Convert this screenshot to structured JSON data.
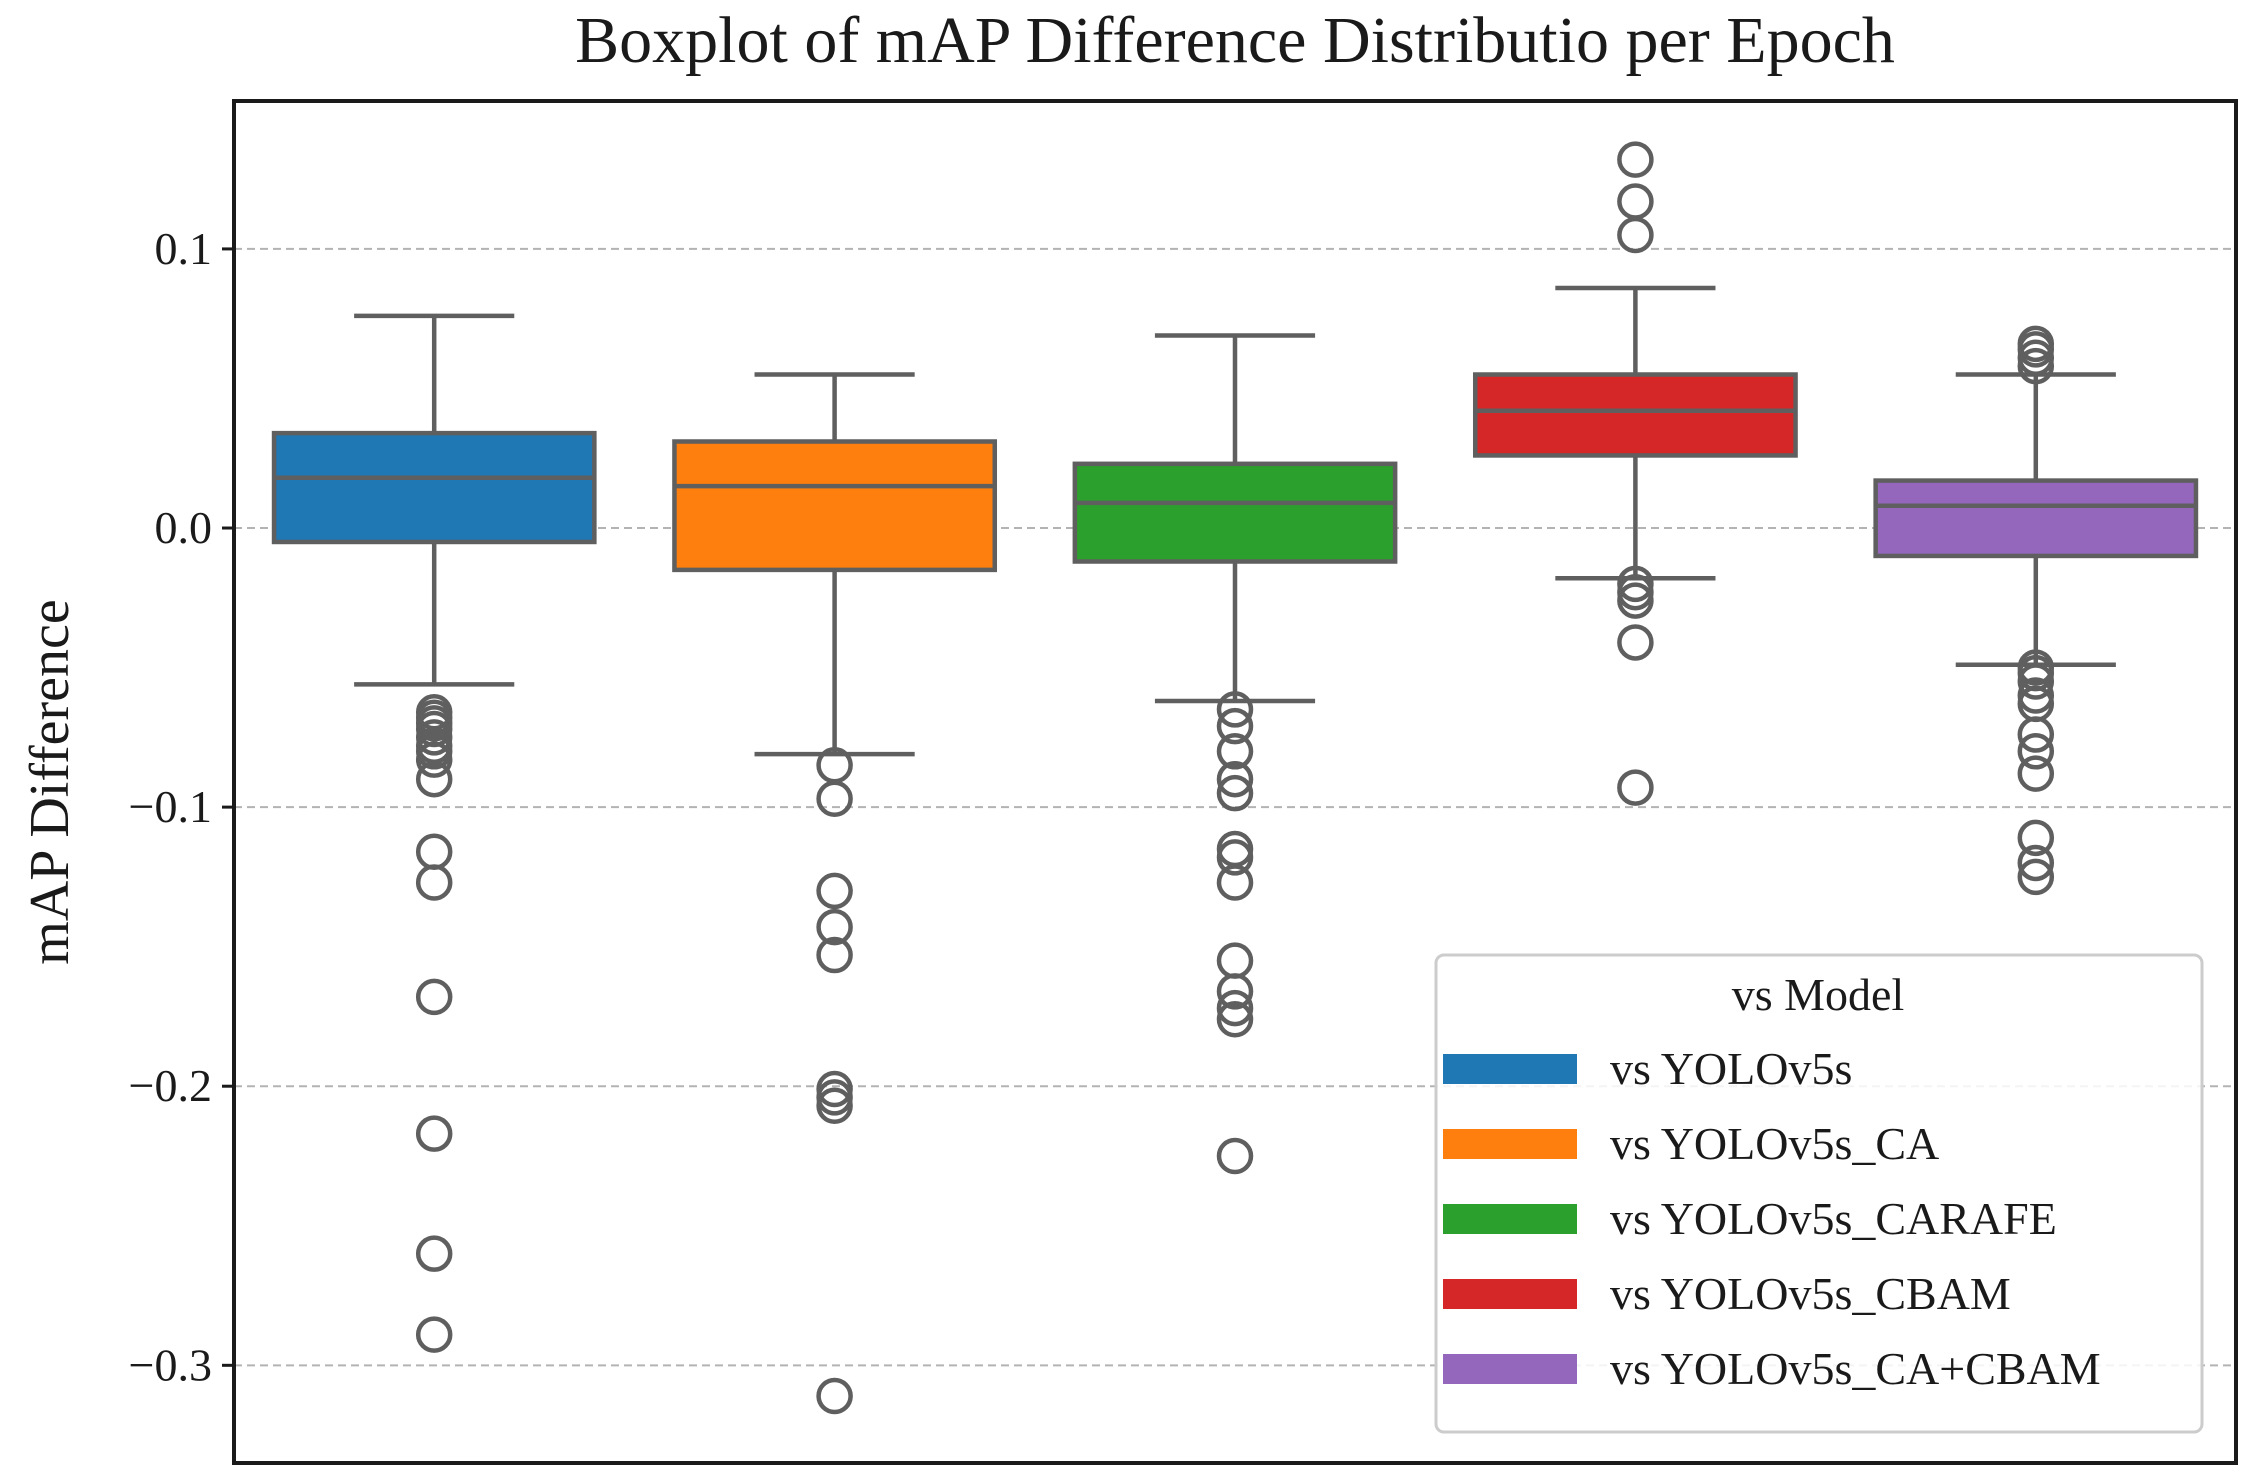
{
  "chart_data": {
    "type": "boxplot",
    "title": "Boxplot of mAP Difference Distributio per Epoch",
    "xlabel": "",
    "ylabel": "mAP Difference",
    "ylim": [
      -0.335,
      0.153
    ],
    "yticks": [
      0.1,
      0.0,
      -0.1,
      -0.2,
      -0.3
    ],
    "ytick_labels": [
      "0.1",
      "0.0",
      "−0.1",
      "−0.2",
      "−0.3"
    ],
    "grid": "horizontal dashed",
    "legend": {
      "title": "vs Model",
      "position": "lower-right",
      "entries": [
        "vs YOLOv5s",
        "vs YOLOv5s_CA",
        "vs YOLOv5s_CARAFE",
        "vs YOLOv5s_CBAM",
        "vs YOLOv5s_CA+CBAM"
      ]
    },
    "series": [
      {
        "name": "vs YOLOv5s",
        "color": "#1f77b4",
        "whisker_low": -0.056,
        "q1": -0.005,
        "median": 0.018,
        "q3": 0.034,
        "whisker_high": 0.076,
        "outliers": [
          -0.066,
          -0.068,
          -0.07,
          -0.072,
          -0.075,
          -0.078,
          -0.08,
          -0.083,
          -0.09,
          -0.116,
          -0.127,
          -0.168,
          -0.217,
          -0.26,
          -0.289
        ]
      },
      {
        "name": "vs YOLOv5s_CA",
        "color": "#ff7f0e",
        "whisker_low": -0.081,
        "q1": -0.015,
        "median": 0.015,
        "q3": 0.031,
        "whisker_high": 0.055,
        "outliers": [
          -0.085,
          -0.097,
          -0.13,
          -0.143,
          -0.153,
          -0.201,
          -0.204,
          -0.207,
          -0.311
        ]
      },
      {
        "name": "vs YOLOv5s_CARAFE",
        "color": "#2ca02c",
        "whisker_low": -0.062,
        "q1": -0.012,
        "median": 0.009,
        "q3": 0.023,
        "whisker_high": 0.069,
        "outliers": [
          -0.065,
          -0.071,
          -0.08,
          -0.09,
          -0.095,
          -0.115,
          -0.118,
          -0.127,
          -0.155,
          -0.166,
          -0.172,
          -0.176,
          -0.225
        ]
      },
      {
        "name": "vs YOLOv5s_CBAM",
        "color": "#d62728",
        "whisker_low": -0.018,
        "q1": 0.026,
        "median": 0.042,
        "q3": 0.055,
        "whisker_high": 0.086,
        "outliers": [
          0.132,
          0.117,
          0.105,
          -0.02,
          -0.023,
          -0.026,
          -0.041,
          -0.093
        ]
      },
      {
        "name": "vs YOLOv5s_CA+CBAM",
        "color": "#9467bd",
        "whisker_low": -0.049,
        "q1": -0.01,
        "median": 0.008,
        "q3": 0.017,
        "whisker_high": 0.055,
        "outliers": [
          0.066,
          0.064,
          0.061,
          0.058,
          -0.05,
          -0.052,
          -0.055,
          -0.06,
          -0.063,
          -0.074,
          -0.08,
          -0.088,
          -0.111,
          -0.12,
          -0.125
        ]
      }
    ]
  }
}
